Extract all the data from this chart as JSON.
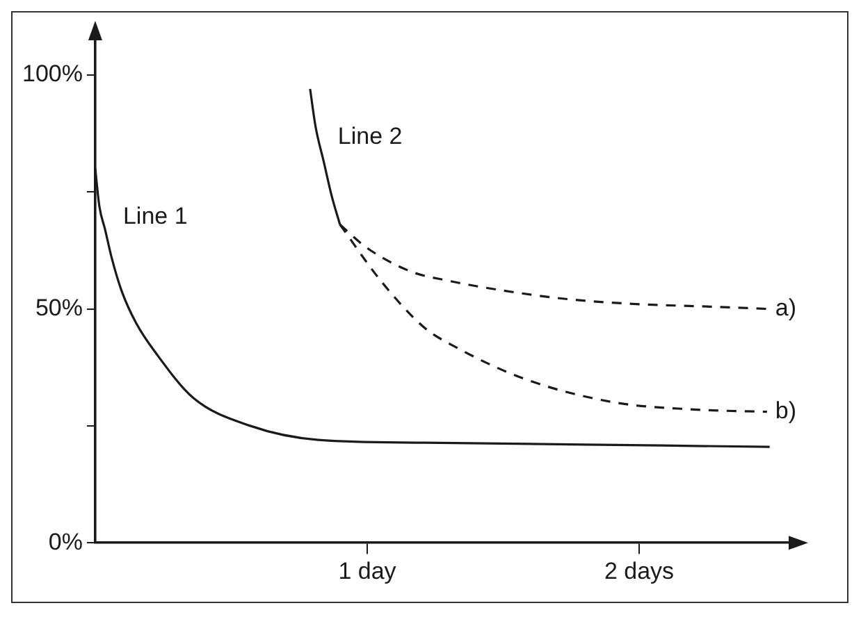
{
  "chart_data": {
    "type": "line",
    "xlim": [
      0,
      2.56
    ],
    "ylim": [
      0,
      108
    ],
    "xticks": [
      {
        "value": 1,
        "label": "1 day"
      },
      {
        "value": 2,
        "label": "2 days"
      }
    ],
    "yticks": [
      {
        "value": 0,
        "label": "0%"
      },
      {
        "value": 25,
        "label": null
      },
      {
        "value": 50,
        "label": "50%"
      },
      {
        "value": 75,
        "label": null
      },
      {
        "value": 100,
        "label": "100%"
      }
    ],
    "grid": false,
    "legend": false,
    "marker": "none",
    "series": [
      {
        "name": "Line 1",
        "color": "#1a1a1a",
        "line_style": "solid",
        "x": [
          0,
          0.015,
          0.036,
          0.06,
          0.096,
          0.15,
          0.23,
          0.36,
          0.57,
          0.82,
          1.21,
          1.8,
          2.48
        ],
        "values": [
          80,
          72,
          67,
          61,
          54,
          47,
          40,
          31,
          25,
          22,
          21.4,
          21,
          20.5
        ]
      },
      {
        "name": "Line 2",
        "color": "#1a1a1a",
        "line_style": "solid",
        "x": [
          0.79,
          0.81,
          0.84,
          0.87,
          0.9
        ],
        "values": [
          97,
          89,
          81.5,
          74,
          68
        ]
      },
      {
        "name": "a)",
        "color": "#1a1a1a",
        "line_style": "dashed",
        "x": [
          0.9,
          1.0,
          1.16,
          1.3,
          1.49,
          1.75,
          2.0,
          2.25,
          2.47
        ],
        "values": [
          68,
          63,
          58,
          56,
          54,
          52,
          51,
          50.5,
          50
        ]
      },
      {
        "name": "b)",
        "color": "#1a1a1a",
        "line_style": "dashed",
        "x": [
          0.9,
          1.05,
          1.21,
          1.32,
          1.58,
          1.91,
          2.2,
          2.47
        ],
        "values": [
          68,
          56,
          46,
          42,
          35,
          30,
          28.5,
          28
        ]
      }
    ]
  }
}
